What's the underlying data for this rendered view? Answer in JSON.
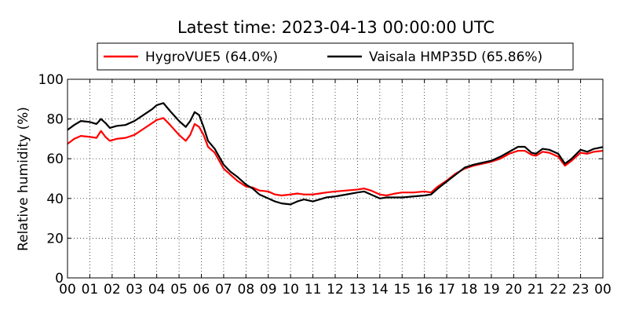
{
  "chart_data": {
    "type": "line",
    "title": "Latest time: 2023-04-13 00:00:00 UTC",
    "ylabel": "Relative humidity (%)",
    "xlabel": "",
    "xlim": [
      0,
      24
    ],
    "ylim": [
      0,
      100
    ],
    "grid": true,
    "legend_position": "top",
    "x_tick_labels": [
      "00",
      "01",
      "02",
      "03",
      "04",
      "05",
      "06",
      "07",
      "08",
      "09",
      "10",
      "11",
      "12",
      "13",
      "14",
      "15",
      "16",
      "17",
      "18",
      "19",
      "20",
      "21",
      "22",
      "23",
      "00"
    ],
    "y_tick_labels": [
      "0",
      "20",
      "40",
      "60",
      "80",
      "100"
    ],
    "series": [
      {
        "name": "HygroVUE5 (64.0%)",
        "color": "#ff0000",
        "points": [
          [
            0.0,
            67.5
          ],
          [
            0.3,
            70
          ],
          [
            0.6,
            71.5
          ],
          [
            1.0,
            71
          ],
          [
            1.3,
            70.5
          ],
          [
            1.5,
            74
          ],
          [
            1.7,
            71
          ],
          [
            1.9,
            69
          ],
          [
            2.2,
            70
          ],
          [
            2.6,
            70.5
          ],
          [
            3.0,
            72
          ],
          [
            3.4,
            75
          ],
          [
            3.8,
            78
          ],
          [
            4.0,
            79.5
          ],
          [
            4.3,
            80.5
          ],
          [
            4.6,
            77
          ],
          [
            5.0,
            72
          ],
          [
            5.3,
            69
          ],
          [
            5.5,
            72
          ],
          [
            5.7,
            77.5
          ],
          [
            5.9,
            76
          ],
          [
            6.1,
            72
          ],
          [
            6.3,
            66
          ],
          [
            6.6,
            63
          ],
          [
            6.8,
            59
          ],
          [
            7.0,
            55
          ],
          [
            7.3,
            52
          ],
          [
            7.6,
            49
          ],
          [
            8.0,
            46
          ],
          [
            8.3,
            45.5
          ],
          [
            8.6,
            44
          ],
          [
            9.0,
            43.5
          ],
          [
            9.3,
            42
          ],
          [
            9.6,
            41.5
          ],
          [
            10.0,
            42
          ],
          [
            10.3,
            42.5
          ],
          [
            10.6,
            42
          ],
          [
            11.0,
            42
          ],
          [
            11.3,
            42.5
          ],
          [
            11.6,
            43
          ],
          [
            12.0,
            43.5
          ],
          [
            12.5,
            44
          ],
          [
            13.0,
            44.5
          ],
          [
            13.3,
            45
          ],
          [
            13.6,
            44
          ],
          [
            14.0,
            42
          ],
          [
            14.3,
            41.5
          ],
          [
            14.7,
            42.5
          ],
          [
            15.0,
            43
          ],
          [
            15.5,
            43
          ],
          [
            16.0,
            43.5
          ],
          [
            16.3,
            43
          ],
          [
            16.6,
            46
          ],
          [
            17.0,
            49
          ],
          [
            17.4,
            52.5
          ],
          [
            17.8,
            55
          ],
          [
            18.2,
            56.5
          ],
          [
            18.6,
            57.5
          ],
          [
            19.0,
            58.5
          ],
          [
            19.4,
            60
          ],
          [
            19.8,
            62.5
          ],
          [
            20.2,
            64
          ],
          [
            20.5,
            64
          ],
          [
            20.8,
            62
          ],
          [
            21.0,
            61.5
          ],
          [
            21.3,
            63.5
          ],
          [
            21.6,
            63
          ],
          [
            22.0,
            61
          ],
          [
            22.3,
            56.5
          ],
          [
            22.6,
            59
          ],
          [
            23.0,
            63
          ],
          [
            23.3,
            62.5
          ],
          [
            23.6,
            63.5
          ],
          [
            24.0,
            64.0
          ]
        ]
      },
      {
        "name": "Vaisala HMP35D (65.86%)",
        "color": "#000000",
        "points": [
          [
            0.0,
            74.5
          ],
          [
            0.3,
            77
          ],
          [
            0.6,
            79
          ],
          [
            1.0,
            78.5
          ],
          [
            1.3,
            77.5
          ],
          [
            1.5,
            80
          ],
          [
            1.7,
            78
          ],
          [
            1.9,
            75.5
          ],
          [
            2.2,
            76.5
          ],
          [
            2.6,
            77
          ],
          [
            3.0,
            79
          ],
          [
            3.4,
            82
          ],
          [
            3.8,
            85
          ],
          [
            4.0,
            87
          ],
          [
            4.3,
            88
          ],
          [
            4.6,
            84
          ],
          [
            5.0,
            79
          ],
          [
            5.3,
            76
          ],
          [
            5.5,
            79
          ],
          [
            5.7,
            83.5
          ],
          [
            5.9,
            82
          ],
          [
            6.1,
            76
          ],
          [
            6.3,
            69
          ],
          [
            6.6,
            65
          ],
          [
            6.8,
            61
          ],
          [
            7.0,
            57
          ],
          [
            7.3,
            53.5
          ],
          [
            7.6,
            51
          ],
          [
            8.0,
            47
          ],
          [
            8.3,
            45
          ],
          [
            8.6,
            42
          ],
          [
            9.0,
            40
          ],
          [
            9.3,
            38.5
          ],
          [
            9.6,
            37.5
          ],
          [
            10.0,
            37
          ],
          [
            10.3,
            38.5
          ],
          [
            10.6,
            39.5
          ],
          [
            11.0,
            38.5
          ],
          [
            11.3,
            39.5
          ],
          [
            11.6,
            40.5
          ],
          [
            12.0,
            41
          ],
          [
            12.5,
            42
          ],
          [
            13.0,
            43
          ],
          [
            13.3,
            43.5
          ],
          [
            13.6,
            42
          ],
          [
            14.0,
            40
          ],
          [
            14.3,
            40.5
          ],
          [
            14.7,
            40.5
          ],
          [
            15.0,
            40.5
          ],
          [
            15.5,
            41
          ],
          [
            16.0,
            41.5
          ],
          [
            16.3,
            42
          ],
          [
            16.6,
            45
          ],
          [
            17.0,
            48.5
          ],
          [
            17.4,
            52
          ],
          [
            17.8,
            55.5
          ],
          [
            18.2,
            57
          ],
          [
            18.6,
            58
          ],
          [
            19.0,
            59
          ],
          [
            19.4,
            61
          ],
          [
            19.8,
            63.5
          ],
          [
            20.2,
            66
          ],
          [
            20.5,
            66
          ],
          [
            20.8,
            63
          ],
          [
            21.0,
            62.5
          ],
          [
            21.3,
            65
          ],
          [
            21.6,
            64.5
          ],
          [
            22.0,
            62.5
          ],
          [
            22.3,
            57.5
          ],
          [
            22.6,
            60
          ],
          [
            23.0,
            64.5
          ],
          [
            23.3,
            63.5
          ],
          [
            23.6,
            65
          ],
          [
            24.0,
            65.86
          ]
        ]
      }
    ]
  }
}
